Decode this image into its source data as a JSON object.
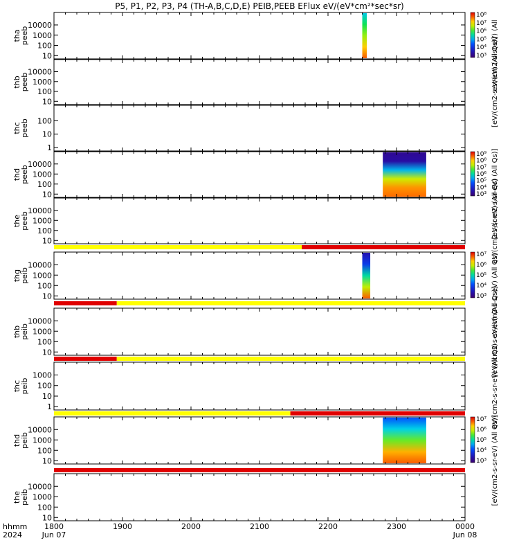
{
  "chart_data": {
    "type": "heatmap",
    "title": "P5, P1, P2, P3, P4 (TH-A,B,C,D,E) PEIB,PEEB EFlux eV/(eV*cm²*sec*sr)",
    "x_ticks": [
      "1800",
      "1900",
      "2000",
      "2100",
      "2200",
      "2300",
      "0000"
    ],
    "x_header": [
      "hhmm",
      "2024"
    ],
    "date_start": "Jun 07",
    "date_end": "Jun 08",
    "panels": [
      {
        "id": "tha-peeb",
        "label": [
          "tha",
          "peeb"
        ],
        "yticks": [
          "10000",
          "1000",
          "100",
          "10"
        ],
        "colorbar": {
          "ticks": [
            "10⁸",
            "10⁷",
            "10⁶",
            "10⁵",
            "10⁴",
            "10³"
          ],
          "label": "eV/(cm2-s-sr-eV) (All",
          "min_exp": 3,
          "max_exp": 8
        },
        "data": [
          {
            "t_start": "22:30",
            "t_end": "22:34",
            "profile": [
              5.2,
              5.8,
              6.3,
              7.0,
              7.5
            ]
          }
        ]
      },
      {
        "id": "thb-peeb",
        "label": [
          "thb",
          "peeb"
        ],
        "yticks": [
          "10000",
          "1000",
          "100",
          "10"
        ],
        "colorbar": {
          "ticks": [],
          "label": "[eV/(cm2-s-sr-eV) (All Qs)]"
        },
        "data": []
      },
      {
        "id": "thc-peeb",
        "label": [
          "thc",
          "peeb"
        ],
        "yticks": [
          "100",
          "10",
          "1"
        ],
        "colorbar": {
          "ticks": [],
          "label": ""
        },
        "data": []
      },
      {
        "id": "thd-peeb",
        "label": [
          "thd",
          "peeb"
        ],
        "yticks": [
          "10000",
          "1000",
          "100",
          "10"
        ],
        "colorbar": {
          "ticks": [
            "10⁹",
            "10⁸",
            "10⁷",
            "10⁶",
            "10⁵",
            "10⁴",
            "10³"
          ],
          "label": "[eV/(cm2-s-sr-eV) (All Qs)]",
          "min_exp": 3,
          "max_exp": 9
        },
        "data": [
          {
            "t_start": "22:48",
            "t_end": "23:26",
            "profile": [
              3.4,
              3.6,
              5.5,
              7.3,
              8.1,
              8.3
            ]
          }
        ]
      },
      {
        "id": "the-peeb",
        "label": [
          "the",
          "peeb"
        ],
        "yticks": [
          "10000",
          "1000",
          "100",
          "10"
        ],
        "colorbar": {
          "ticks": [],
          "label": "eV/(cm2-s-sr-eV) (All Qs)"
        },
        "data": []
      },
      {
        "id": "thg-peib",
        "label": [
          "thg",
          "peib"
        ],
        "yticks": [
          "10000",
          "1000",
          "100",
          "10"
        ],
        "colorbar": {
          "ticks": [
            "10⁷",
            "10⁶",
            "10⁵",
            "10⁴",
            "10³"
          ],
          "label": "eV/(cm2-s-sr-eV) (All Qs)",
          "min_exp": 3,
          "max_exp": 7
        },
        "data": [
          {
            "t_start": "22:30",
            "t_end": "22:37",
            "profile": [
              3.5,
              4.0,
              5.0,
              5.8,
              6.6
            ]
          }
        ]
      },
      {
        "id": "thb-peib",
        "label": [
          "thb",
          "peib"
        ],
        "yticks": [
          "10000",
          "1000",
          "100",
          "10"
        ],
        "colorbar": {
          "ticks": [],
          "label": "[eV/(cm2-s-sr-eV) (All Qs)]"
        },
        "data": []
      },
      {
        "id": "thc-peib",
        "label": [
          "thc",
          "peib"
        ],
        "yticks": [
          "1000",
          "100",
          "10",
          "1"
        ],
        "colorbar": {
          "ticks": [],
          "label": "eV/(cm2-s-sr-eV) (All Qs)"
        },
        "data": []
      },
      {
        "id": "thd-peib",
        "label": [
          "thd",
          "peib"
        ],
        "yticks": [
          "10000",
          "1000",
          "100",
          "10"
        ],
        "colorbar": {
          "ticks": [
            "10⁷",
            "10⁶",
            "10⁵",
            "10⁴",
            "10³"
          ],
          "label": "[eV/(cm2-s-sr-eV) (All Qs)]",
          "min_exp": 3,
          "max_exp": 7
        },
        "data": [
          {
            "t_start": "22:48",
            "t_end": "23:26",
            "profile": [
              4.2,
              4.8,
              5.5,
              6.3,
              6.6
            ]
          }
        ]
      },
      {
        "id": "the-peib",
        "label": [
          "the",
          "peib"
        ],
        "yticks": [
          "10000",
          "1000",
          "100",
          "10"
        ],
        "colorbar": {
          "ticks": [],
          "label": ""
        },
        "data": []
      }
    ],
    "mode_bars": [
      {
        "after_panel": "the-peeb",
        "segments": [
          {
            "from": "18:00",
            "to": "21:37",
            "color": "#ffff00"
          },
          {
            "from": "21:37",
            "to": "24:00",
            "color": "#e00000"
          }
        ]
      },
      {
        "after_panel": "thg-peib",
        "segments": [
          {
            "from": "18:00",
            "to": "18:55",
            "color": "#e00000"
          },
          {
            "from": "18:55",
            "to": "24:00",
            "color": "#ffff00"
          }
        ]
      },
      {
        "after_panel": "thb-peib",
        "segments": [
          {
            "from": "18:00",
            "to": "18:55",
            "color": "#e00000"
          },
          {
            "from": "18:55",
            "to": "24:00",
            "color": "#ffff00"
          }
        ]
      },
      {
        "after_panel": "thc-peib",
        "segments": [
          {
            "from": "18:00",
            "to": "21:27",
            "color": "#ffff00"
          },
          {
            "from": "21:27",
            "to": "24:00",
            "color": "#e00000"
          }
        ]
      },
      {
        "after_panel": "thd-peib",
        "segments": [
          {
            "from": "18:00",
            "to": "24:00",
            "color": "#e00000"
          }
        ]
      }
    ]
  }
}
